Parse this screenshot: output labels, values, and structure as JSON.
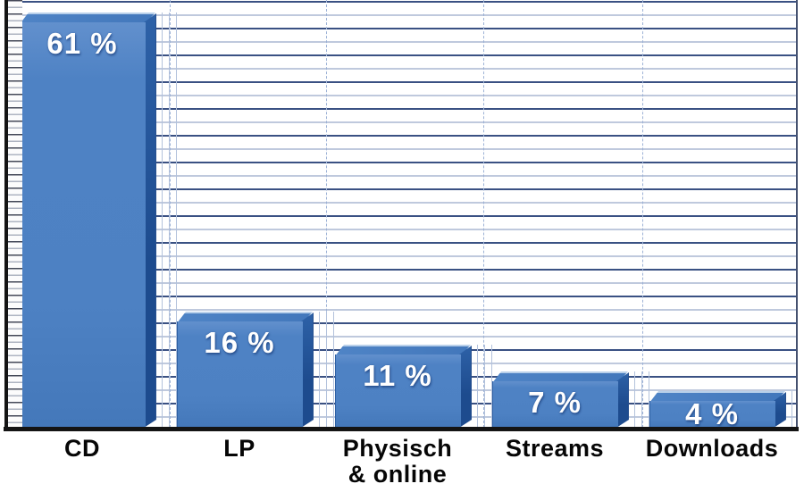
{
  "chart_data": {
    "type": "bar",
    "title": "",
    "xlabel": "",
    "ylabel": "",
    "categories": [
      "CD",
      "LP",
      "Physisch & online",
      "Streams",
      "Downloads"
    ],
    "tick_labels": [
      "CD",
      "LP",
      "Physisch\n& online",
      "Streams",
      "Downloads"
    ],
    "values": [
      61,
      16,
      11,
      7,
      4
    ],
    "value_labels": [
      "61 %",
      "16 %",
      "11 %",
      "7 %",
      "4 %"
    ],
    "unit": "%",
    "ylim": [
      0,
      64
    ],
    "grid": true,
    "legend": false,
    "style": "3d-excel",
    "colors": {
      "bar_front": "#4d81c3",
      "bar_side": "#1d4b8e",
      "bar_top": "#4379bc",
      "bar_highlight": "#b9d0ea",
      "gridline_dark": "#3a5183",
      "gridline_light": "#bfc9dd",
      "separator": "#9db2d6",
      "baseline": "#141414",
      "value_text": "#ffffff",
      "category_text": "#060606",
      "background": "#ffffff"
    }
  }
}
